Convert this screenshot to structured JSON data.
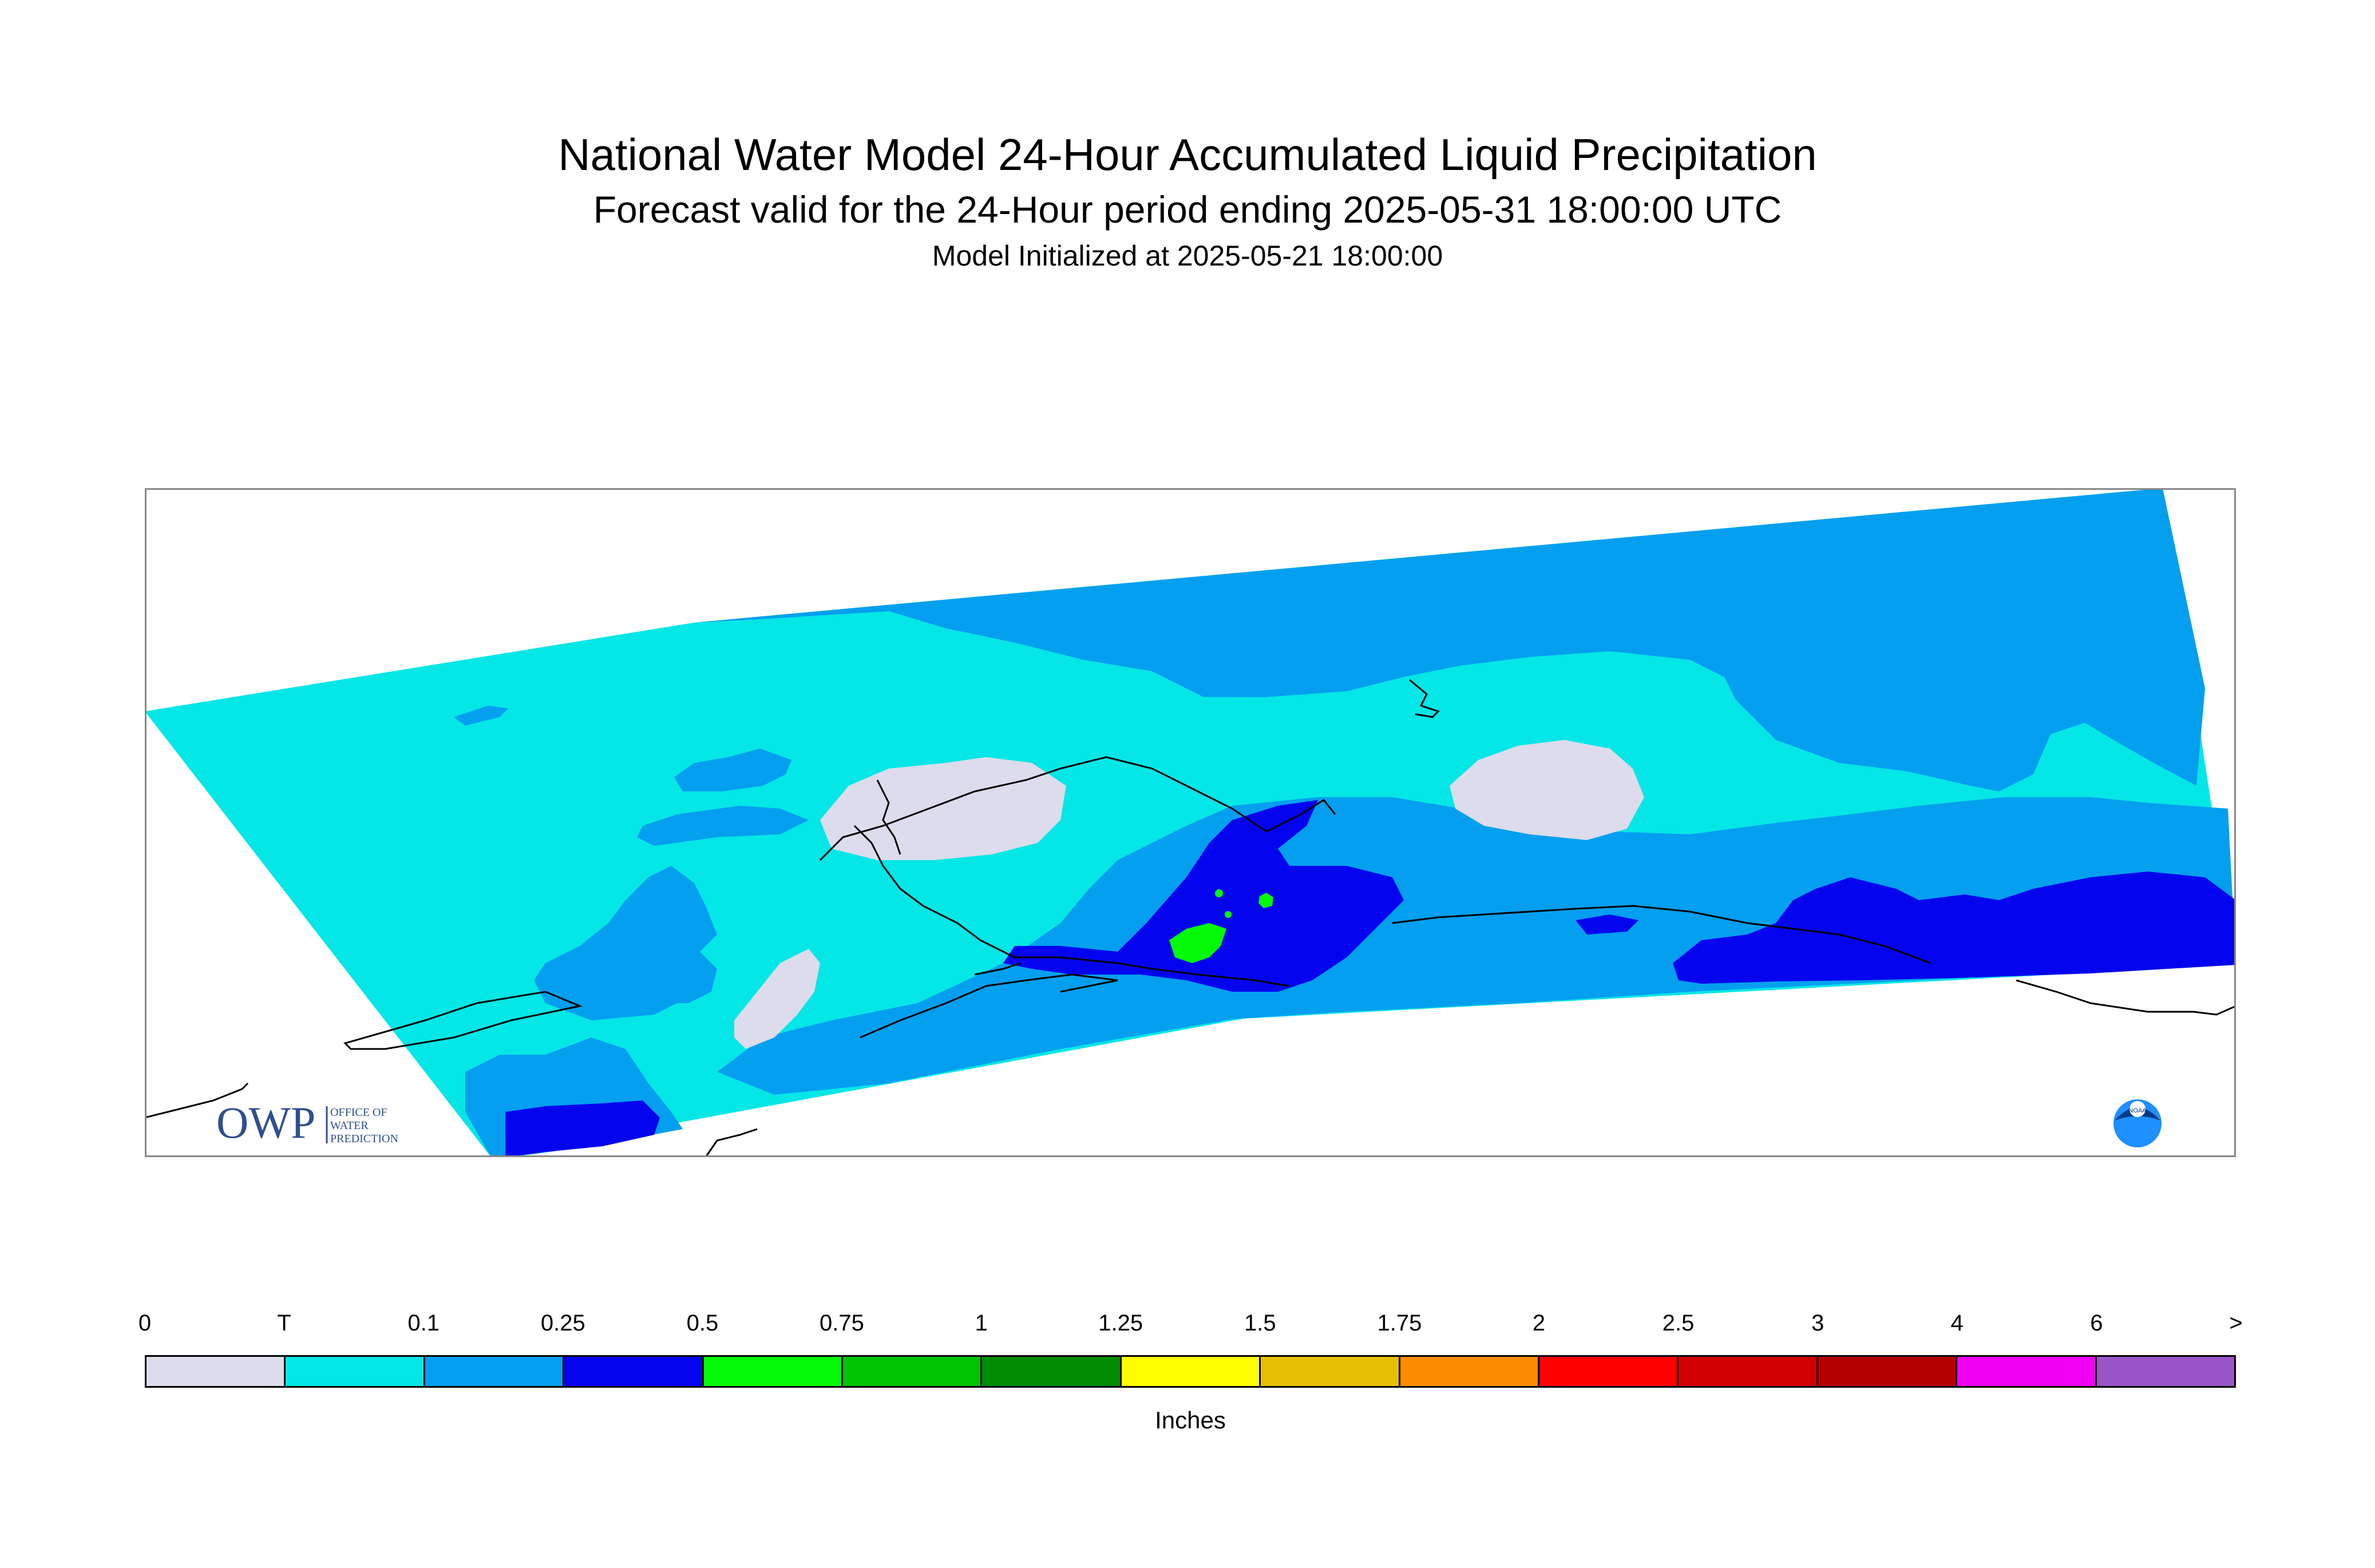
{
  "title": "National Water Model 24-Hour Accumulated Liquid Precipitation",
  "subtitle": "Forecast valid for the 24-Hour period ending 2025-05-31 18:00:00 UTC",
  "init_line": "Model Initialized at 2025-05-21 18:00:00",
  "logos": {
    "owp": {
      "mark": "OWP",
      "line1": "OFFICE OF",
      "line2": "WATER",
      "line3": "PREDICTION"
    },
    "noaa": {
      "mark": "NOAA"
    }
  },
  "legend": {
    "boundaries": [
      "0",
      "T",
      "0.1",
      "0.25",
      "0.5",
      "0.75",
      "1",
      "1.25",
      "1.5",
      "1.75",
      "2",
      "2.5",
      "3",
      "4",
      "6",
      ">"
    ],
    "colors": [
      "#dcdcec",
      "#05e6e6",
      "#049fef",
      "#0303ee",
      "#04fa04",
      "#00c400",
      "#008c00",
      "#ffff00",
      "#e6c000",
      "#ff8c00",
      "#ff0000",
      "#d20000",
      "#b40000",
      "#f000f0",
      "#9954c8"
    ],
    "units": "Inches"
  },
  "map": {
    "colors": {
      "trace": "#05e6e6",
      "light": "#049fef",
      "moderate": "#0303ee",
      "heavy": "#04fa04",
      "zero": "#dcdcec",
      "coast": "#000000"
    }
  }
}
